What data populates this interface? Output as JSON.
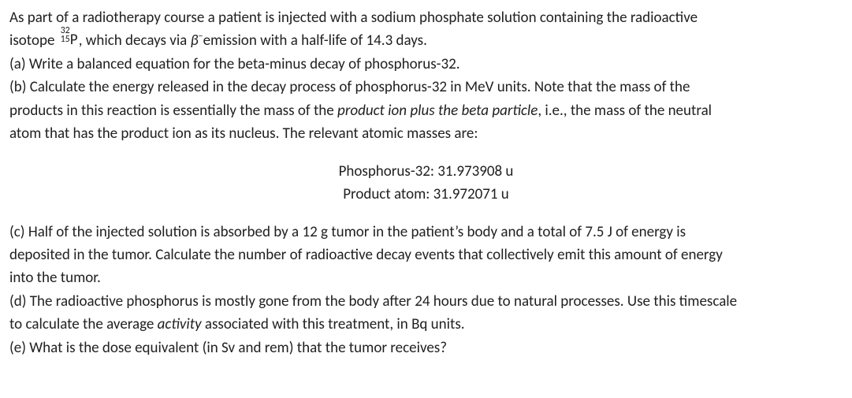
{
  "intro": {
    "line1_pre": "As part of a radiotherapy course a patient is injected with a sodium phosphate solution containing the radioactive",
    "line2_pre": "isotope ",
    "isotope_mass": "32",
    "isotope_z": "15",
    "isotope_el": "P",
    "line2_mid": ", which decays via ",
    "beta_sym": "β",
    "beta_sup": "−",
    "line2_post": "emission with a half-life of 14.3 days."
  },
  "part_a": "(a) Write a balanced equation for the beta-minus decay of phosphorus-32.",
  "part_b": {
    "l1": "(b) Calculate the energy released in the decay process of phosphorus-32 in MeV units. Note that the mass of the",
    "l2_pre": "products in this reaction is essentially the mass of the ",
    "l2_em": "product ion plus the beta particle",
    "l2_post": ", i.e., the mass of the neutral",
    "l3": "atom that has the product ion as its nucleus. The relevant atomic masses are:"
  },
  "masses": {
    "p32": "Phosphorus-32: 31.973908 u",
    "prod": "Product atom: 31.972071 u"
  },
  "part_c": {
    "l1": "(c) Half of the injected solution is absorbed by a 12 g tumor in the patient’s body and a total of 7.5 J of energy is",
    "l2": "deposited in the tumor. Calculate the number of radioactive decay events that collectively emit this amount of energy",
    "l3": "into the tumor."
  },
  "part_d": {
    "l1": "(d) The radioactive phosphorus is mostly gone from the body after 24 hours due to natural processes. Use this timescale",
    "l2_pre": "to calculate the average ",
    "l2_em": "activity",
    "l2_post": " associated with this treatment, in Bq units."
  },
  "part_e": "(e) What is the dose equivalent (in Sv and rem) that the tumor receives?"
}
